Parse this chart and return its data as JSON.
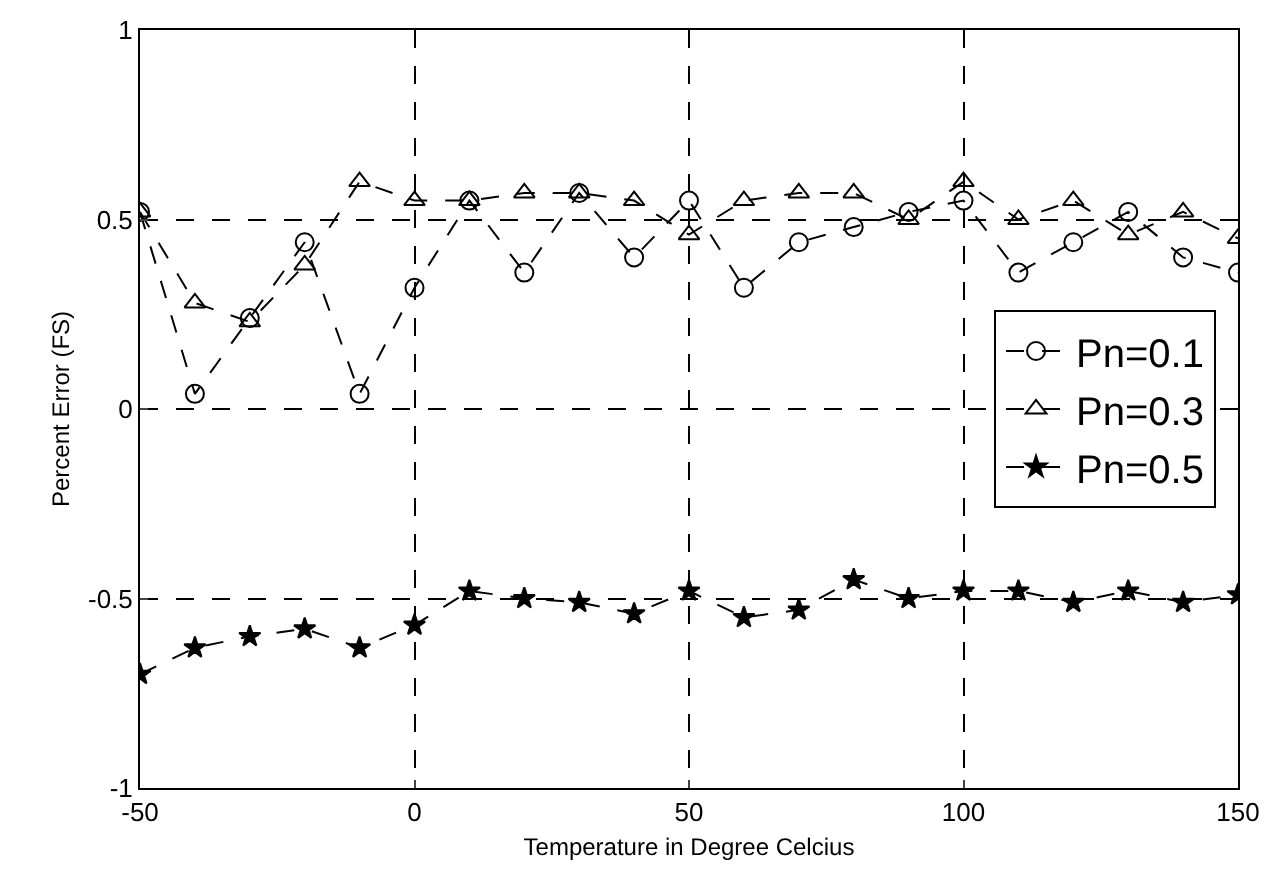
{
  "chart_data": {
    "type": "line",
    "xlabel": "Temperature in Degree Celcius",
    "ylabel": "Percent Error (FS)",
    "x": [
      -50,
      -40,
      -30,
      -20,
      -10,
      0,
      10,
      20,
      30,
      40,
      50,
      60,
      70,
      80,
      90,
      100,
      110,
      120,
      130,
      140,
      150
    ],
    "xlim": [
      -50,
      150
    ],
    "xticks": [
      -50,
      0,
      50,
      100,
      150
    ],
    "ylim": [
      -1,
      1
    ],
    "yticks": [
      -1,
      -0.5,
      0,
      0.5,
      1
    ],
    "grid": true,
    "legend": "right",
    "line_style": "dashed",
    "series": [
      {
        "name": "Pn=0.1",
        "color": "#000000",
        "marker": "circle",
        "values": [
          0.52,
          0.04,
          0.24,
          0.44,
          0.04,
          0.32,
          0.55,
          0.36,
          0.57,
          0.4,
          0.55,
          0.32,
          0.44,
          0.48,
          0.52,
          0.55,
          0.36,
          0.44,
          0.52,
          0.4,
          0.36
        ]
      },
      {
        "name": "Pn=0.3",
        "color": "#000000",
        "marker": "triangle",
        "values": [
          0.52,
          0.28,
          0.23,
          0.38,
          0.6,
          0.55,
          0.55,
          0.57,
          0.57,
          0.55,
          0.46,
          0.55,
          0.57,
          0.57,
          0.5,
          0.6,
          0.5,
          0.55,
          0.46,
          0.52,
          0.45
        ]
      },
      {
        "name": "Pn=0.5",
        "color": "#000000",
        "marker": "star",
        "values": [
          -0.7,
          -0.63,
          -0.6,
          -0.58,
          -0.63,
          -0.57,
          -0.48,
          -0.5,
          -0.51,
          -0.54,
          -0.48,
          -0.55,
          -0.53,
          -0.45,
          -0.5,
          -0.48,
          -0.48,
          -0.51,
          -0.48,
          -0.51,
          -0.49
        ]
      }
    ]
  }
}
